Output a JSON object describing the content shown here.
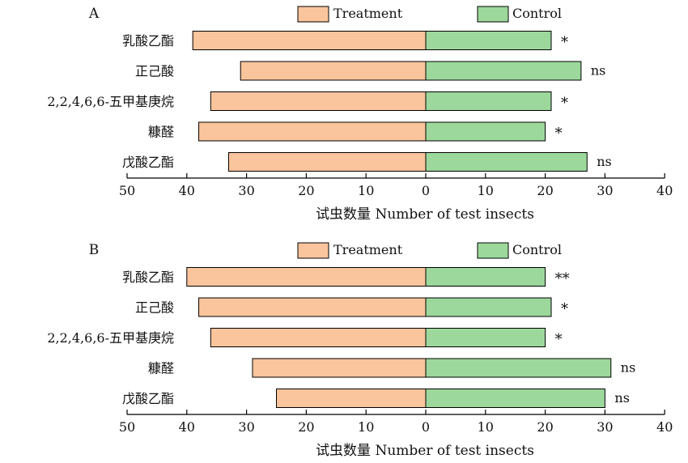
{
  "colors": {
    "treatment": "#fac49c",
    "control": "#9cd89c",
    "stroke": "#000000"
  },
  "legend": {
    "treatment": "Treatment",
    "control": "Control"
  },
  "chart_data": [
    {
      "type": "bar",
      "orientation": "horizontal-diverging",
      "panel_label": "A",
      "categories": [
        "乳酸乙酯",
        "正己酸",
        "2,2,4,6,6-五甲基庚烷",
        "糠醛",
        "戊酸乙酯"
      ],
      "series": [
        {
          "name": "Treatment",
          "values": [
            39,
            31,
            36,
            38,
            33
          ]
        },
        {
          "name": "Control",
          "values": [
            21,
            26,
            21,
            20,
            27
          ]
        }
      ],
      "significance": [
        "*",
        "ns",
        "*",
        "*",
        "ns"
      ],
      "xlabel": "试虫数量 Number of test insects",
      "xlim_left": 50,
      "xlim_right": 40,
      "x_ticks_left": [
        50,
        40,
        30,
        20,
        10
      ],
      "x_ticks_right": [
        0,
        10,
        20,
        30,
        40
      ],
      "legend_position": "top",
      "grid": false
    },
    {
      "type": "bar",
      "orientation": "horizontal-diverging",
      "panel_label": "B",
      "categories": [
        "乳酸乙酯",
        "正己酸",
        "2,2,4,6,6-五甲基庚烷",
        "糠醛",
        "戊酸乙酯"
      ],
      "series": [
        {
          "name": "Treatment",
          "values": [
            40,
            38,
            36,
            29,
            25
          ]
        },
        {
          "name": "Control",
          "values": [
            20,
            21,
            20,
            31,
            30
          ]
        }
      ],
      "significance": [
        "**",
        "*",
        "*",
        "ns",
        "ns"
      ],
      "xlabel": "试虫数量 Number of test insects",
      "xlim_left": 50,
      "xlim_right": 40,
      "x_ticks_left": [
        50,
        40,
        30,
        20,
        10
      ],
      "x_ticks_right": [
        0,
        10,
        20,
        30,
        40
      ],
      "legend_position": "top",
      "grid": false
    }
  ]
}
